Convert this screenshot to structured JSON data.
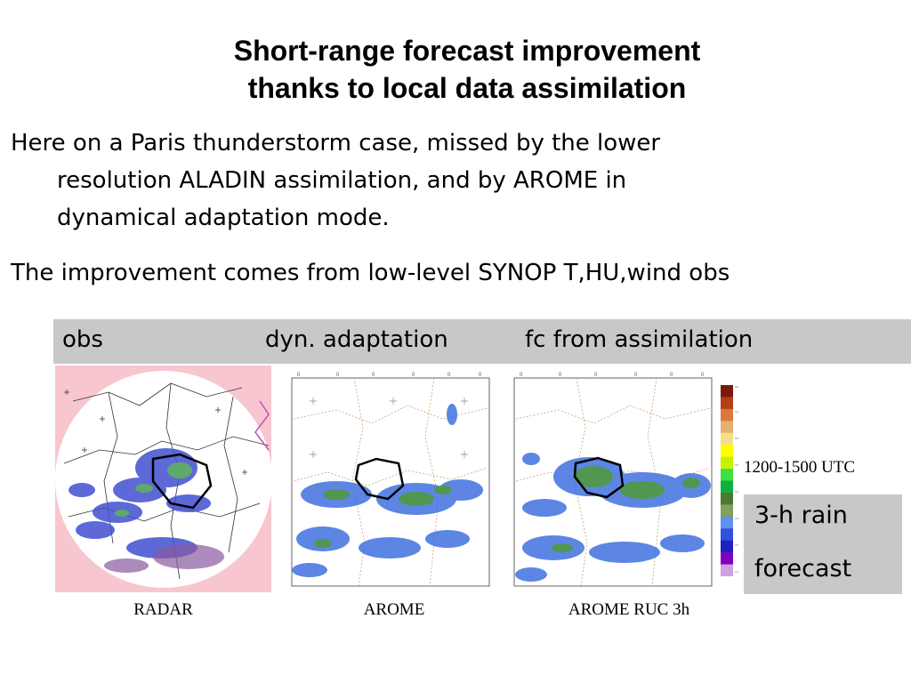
{
  "slide": {
    "title_line1": "Short-range forecast improvement",
    "title_line2": "thanks to local data assimilation",
    "para1_line1": "Here on a Paris thunderstorm case, missed by the lower",
    "para1_line2": "resolution ALADIN assimilation, and by AROME in",
    "para1_line3": "dynamical adaptation mode.",
    "para2": "The improvement comes from low-level SYNOP T,HU,wind obs"
  },
  "band": {
    "obs": "obs",
    "dyn": "dyn. adaptation",
    "fc": "fc from assimilation"
  },
  "panels": {
    "radar_caption": "RADAR",
    "arome_caption": "AROME",
    "arome_ruc_caption": "AROME RUC 3h"
  },
  "legend": {
    "time_label": "1200-1500 UTC",
    "rain_line1": "3-h rain",
    "rain_line2": "forecast",
    "colors": [
      "#7b1a0a",
      "#b3401a",
      "#d97a3a",
      "#e6b070",
      "#f2e08a",
      "#ffff00",
      "#c8f000",
      "#40e040",
      "#10b040",
      "#4a7a30",
      "#80a060",
      "#6090f0",
      "#3050e0",
      "#2020c0",
      "#8000c0",
      "#d0a0e0"
    ]
  }
}
